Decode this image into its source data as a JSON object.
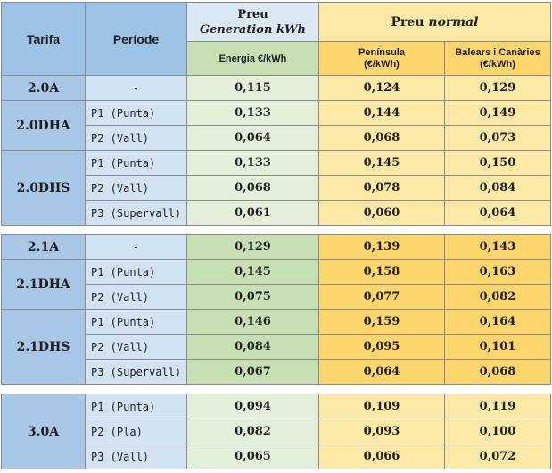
{
  "header": {
    "tarifa": "Tarifa",
    "periode": "Període",
    "gen_line1": "Preu",
    "gen_line2": "Generation kWh",
    "normal_prefix": "Preu",
    "normal_suffix": "normal",
    "gen_sub": "Energia €/kWh",
    "pen_line1": "Península",
    "pen_line2": "(€/kWh)",
    "bal_line1": "Balears i Canàries",
    "bal_line2": "(€/kWh)"
  },
  "groups": [
    {
      "tarifas": [
        {
          "name": "2.0A",
          "rows": [
            {
              "period": "-",
              "gen": "0,115",
              "pen": "0,124",
              "bal": "0,129"
            }
          ]
        },
        {
          "name": "2.0DHA",
          "rows": [
            {
              "period": "P1 (Punta)",
              "gen": "0,133",
              "pen": "0,144",
              "bal": "0,149"
            },
            {
              "period": "P2 (Vall)",
              "gen": "0,064",
              "pen": "0,068",
              "bal": "0,073"
            }
          ]
        },
        {
          "name": "2.0DHS",
          "rows": [
            {
              "period": "P1 (Punta)",
              "gen": "0,133",
              "pen": "0,145",
              "bal": "0,150"
            },
            {
              "period": "P2 (Vall)",
              "gen": "0,068",
              "pen": "0,078",
              "bal": "0,084"
            },
            {
              "period": "P3 (Supervall)",
              "gen": "0,061",
              "pen": "0,060",
              "bal": "0,064"
            }
          ]
        }
      ]
    },
    {
      "tarifas": [
        {
          "name": "2.1A",
          "rows": [
            {
              "period": "-",
              "gen": "0,129",
              "pen": "0,139",
              "bal": "0,143"
            }
          ]
        },
        {
          "name": "2.1DHA",
          "rows": [
            {
              "period": "P1 (Punta)",
              "gen": "0,145",
              "pen": "0,158",
              "bal": "0,163"
            },
            {
              "period": "P2 (Vall)",
              "gen": "0,075",
              "pen": "0,077",
              "bal": "0,082"
            }
          ]
        },
        {
          "name": "2.1DHS",
          "rows": [
            {
              "period": "P1 (Punta)",
              "gen": "0,146",
              "pen": "0,159",
              "bal": "0,164"
            },
            {
              "period": "P2 (Vall)",
              "gen": "0,084",
              "pen": "0,095",
              "bal": "0,101"
            },
            {
              "period": "P3 (Supervall)",
              "gen": "0,067",
              "pen": "0,064",
              "bal": "0,068"
            }
          ]
        }
      ]
    },
    {
      "tarifas": [
        {
          "name": "3.0A",
          "rows": [
            {
              "period": "P1 (Punta)",
              "gen": "0,094",
              "pen": "0,109",
              "bal": "0,119"
            },
            {
              "period": "P2 (Pla)",
              "gen": "0,082",
              "pen": "0,093",
              "bal": "0,100"
            },
            {
              "period": "P3 (Vall)",
              "gen": "0,065",
              "pen": "0,066",
              "bal": "0,072"
            }
          ]
        }
      ]
    }
  ]
}
